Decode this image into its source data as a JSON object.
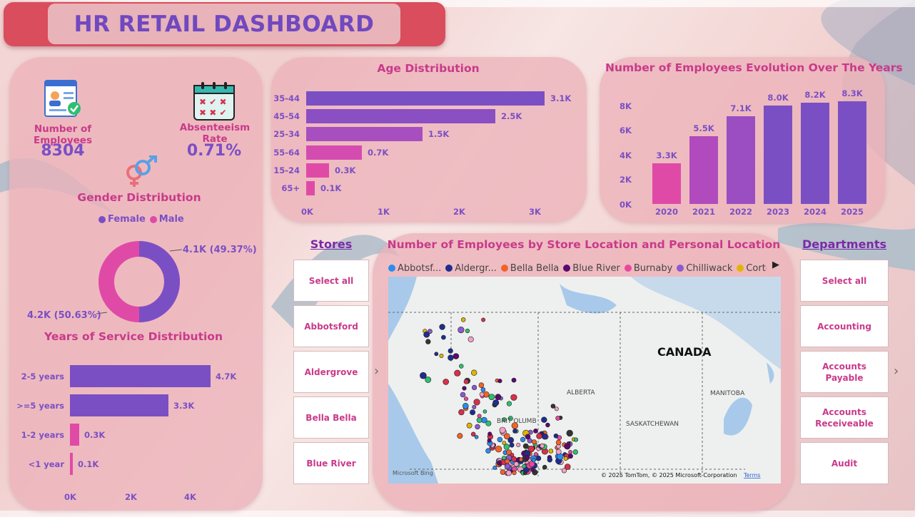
{
  "dashboard": {
    "title": "HR RETAIL DASHBOARD"
  },
  "kpis": {
    "employees": {
      "label": "Number of Employees",
      "value": "8304",
      "icon": "employee-card-icon"
    },
    "absenteeism": {
      "label": "Absenteeism Rate",
      "value": "0.71%",
      "icon": "calendar-icon"
    }
  },
  "gender": {
    "title": "Gender Distribution",
    "legend": [
      {
        "name": "Female",
        "color": "#7b4fc4"
      },
      {
        "name": "Male",
        "color": "#e04aa7"
      }
    ],
    "labels": {
      "female": "4.1K (49.37%)",
      "male": "4.2K (50.63%)"
    },
    "icon": "gender-symbol-icon"
  },
  "service": {
    "title": "Years of Service Distribution",
    "categories": [
      "2-5 years",
      ">=5 years",
      "1-2 years",
      "<1 year"
    ],
    "labels": [
      "4.7K",
      "3.3K",
      "0.3K",
      "0.1K"
    ],
    "ticks": [
      "0K",
      "2K",
      "4K"
    ]
  },
  "age": {
    "title": "Age Distribution",
    "categories": [
      "35-44",
      "45-54",
      "25-34",
      "55-64",
      "15-24",
      "65+"
    ],
    "labels": [
      "3.1K",
      "2.5K",
      "1.5K",
      "0.7K",
      "0.3K",
      "0.1K"
    ],
    "ticks": [
      "0K",
      "1K",
      "2K",
      "3K"
    ]
  },
  "evolution": {
    "title": "Number of Employees Evolution Over The Years",
    "years": [
      "2020",
      "2021",
      "2022",
      "2023",
      "2024",
      "2025"
    ],
    "labels": [
      "3.3K",
      "5.5K",
      "7.1K",
      "8.0K",
      "8.2K",
      "8.3K"
    ],
    "ticks": [
      "0K",
      "2K",
      "4K",
      "6K",
      "8K"
    ]
  },
  "stores": {
    "title": "Stores",
    "items": [
      "Select all",
      "Abbotsford",
      "Aldergrove",
      "Bella Bella",
      "Blue River"
    ]
  },
  "departments": {
    "title": "Departments",
    "items": [
      "Select all",
      "Accounting",
      "Accounts Payable",
      "Accounts Receiveable",
      "Audit"
    ]
  },
  "map": {
    "title": "Number of Employees by Store Location and Personal Location",
    "legend": [
      {
        "name": "Abbotsf...",
        "color": "#2b8cf0"
      },
      {
        "name": "Aldergr...",
        "color": "#1f2d8f"
      },
      {
        "name": "Bella Bella",
        "color": "#f0642a"
      },
      {
        "name": "Blue River",
        "color": "#5a0a6e"
      },
      {
        "name": "Burnaby",
        "color": "#e8489c"
      },
      {
        "name": "Chilliwack",
        "color": "#8a5ad0"
      },
      {
        "name": "Cortes I...",
        "color": "#e0b400"
      }
    ],
    "country": "CANADA",
    "provinces": [
      "ALBERTA",
      "MANITOBA",
      "SASKATCHEWAN",
      "BRIT OLUMB"
    ],
    "attribution": "© 2025 TomTom, © 2025 Microsoft Corporation",
    "terms": "Terms",
    "brand": "Microsoft Bing"
  },
  "colors": {
    "purple": "#7b4fc4",
    "pink": "#e04aa7",
    "accent_title": "#c93a8a",
    "title_bar": "#d94d5d"
  }
}
